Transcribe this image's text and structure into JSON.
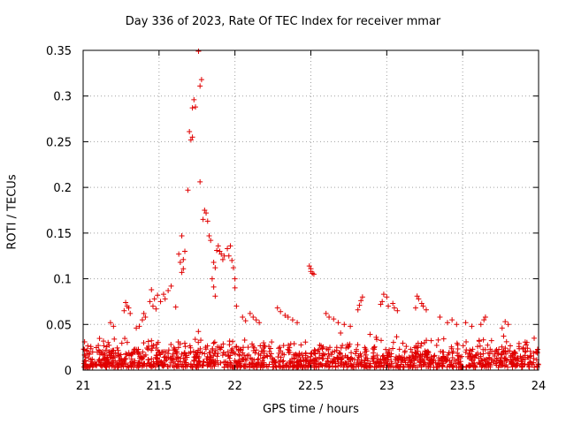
{
  "chart_data": {
    "type": "scatter",
    "title": "Day 336 of 2023, Rate Of TEC Index for receiver mmar",
    "xlabel": "GPS time / hours",
    "ylabel": "ROTI / TECUs",
    "xlim": [
      21,
      24
    ],
    "ylim": [
      0,
      0.35
    ],
    "x_ticks": [
      "21",
      "21.5",
      "22",
      "22.5",
      "23",
      "23.5",
      "24"
    ],
    "y_ticks": [
      "0",
      "0.05",
      "0.1",
      "0.15",
      "0.2",
      "0.25",
      "0.3",
      "0.35"
    ],
    "grid": true,
    "marker": "+",
    "color": "#e00000",
    "series": [
      {
        "name": "ROTI",
        "points": [
          [
            21.76,
            0.349
          ],
          [
            21.78,
            0.318
          ],
          [
            21.77,
            0.311
          ],
          [
            21.73,
            0.296
          ],
          [
            21.74,
            0.288
          ],
          [
            21.72,
            0.287
          ],
          [
            21.7,
            0.261
          ],
          [
            21.72,
            0.255
          ],
          [
            21.71,
            0.252
          ],
          [
            21.77,
            0.206
          ],
          [
            21.69,
            0.197
          ],
          [
            21.8,
            0.175
          ],
          [
            21.81,
            0.172
          ],
          [
            21.79,
            0.165
          ],
          [
            21.82,
            0.163
          ],
          [
            21.83,
            0.147
          ],
          [
            21.84,
            0.142
          ],
          [
            21.65,
            0.147
          ],
          [
            21.67,
            0.13
          ],
          [
            21.63,
            0.127
          ],
          [
            21.66,
            0.121
          ],
          [
            21.64,
            0.118
          ],
          [
            21.66,
            0.111
          ],
          [
            21.65,
            0.107
          ],
          [
            21.89,
            0.136
          ],
          [
            21.88,
            0.131
          ],
          [
            21.9,
            0.13
          ],
          [
            21.91,
            0.127
          ],
          [
            21.93,
            0.125
          ],
          [
            21.92,
            0.121
          ],
          [
            21.95,
            0.133
          ],
          [
            21.97,
            0.136
          ],
          [
            21.96,
            0.125
          ],
          [
            21.98,
            0.12
          ],
          [
            21.99,
            0.112
          ],
          [
            22.0,
            0.1
          ],
          [
            22.0,
            0.09
          ],
          [
            21.86,
            0.118
          ],
          [
            21.87,
            0.112
          ],
          [
            21.85,
            0.1
          ],
          [
            21.86,
            0.091
          ],
          [
            21.87,
            0.081
          ],
          [
            22.01,
            0.07
          ],
          [
            22.49,
            0.114
          ],
          [
            22.5,
            0.111
          ],
          [
            22.5,
            0.108
          ],
          [
            22.51,
            0.106
          ],
          [
            22.52,
            0.105
          ],
          [
            21.58,
            0.092
          ],
          [
            21.56,
            0.087
          ],
          [
            21.53,
            0.083
          ],
          [
            21.49,
            0.082
          ],
          [
            21.47,
            0.078
          ],
          [
            21.51,
            0.075
          ],
          [
            21.54,
            0.078
          ],
          [
            21.45,
            0.088
          ],
          [
            21.44,
            0.075
          ],
          [
            21.46,
            0.07
          ],
          [
            21.48,
            0.067
          ],
          [
            21.61,
            0.069
          ],
          [
            21.28,
            0.074
          ],
          [
            21.29,
            0.07
          ],
          [
            21.3,
            0.068
          ],
          [
            21.27,
            0.065
          ],
          [
            21.31,
            0.062
          ],
          [
            21.4,
            0.062
          ],
          [
            21.41,
            0.058
          ],
          [
            21.39,
            0.055
          ],
          [
            21.37,
            0.048
          ],
          [
            21.35,
            0.046
          ],
          [
            21.18,
            0.052
          ],
          [
            21.2,
            0.048
          ],
          [
            22.98,
            0.083
          ],
          [
            23.0,
            0.08
          ],
          [
            22.97,
            0.075
          ],
          [
            22.96,
            0.072
          ],
          [
            23.01,
            0.07
          ],
          [
            23.04,
            0.073
          ],
          [
            23.05,
            0.068
          ],
          [
            23.07,
            0.065
          ],
          [
            22.84,
            0.08
          ],
          [
            22.83,
            0.076
          ],
          [
            22.82,
            0.071
          ],
          [
            22.81,
            0.066
          ],
          [
            23.2,
            0.081
          ],
          [
            23.21,
            0.078
          ],
          [
            23.23,
            0.073
          ],
          [
            23.24,
            0.07
          ],
          [
            23.19,
            0.068
          ],
          [
            23.26,
            0.066
          ],
          [
            22.28,
            0.068
          ],
          [
            22.3,
            0.064
          ],
          [
            22.33,
            0.06
          ],
          [
            22.35,
            0.058
          ],
          [
            22.38,
            0.055
          ],
          [
            22.41,
            0.052
          ],
          [
            22.1,
            0.062
          ],
          [
            22.12,
            0.058
          ],
          [
            22.14,
            0.055
          ],
          [
            22.16,
            0.052
          ],
          [
            22.05,
            0.058
          ],
          [
            22.07,
            0.054
          ],
          [
            23.35,
            0.058
          ],
          [
            23.4,
            0.052
          ],
          [
            23.43,
            0.055
          ],
          [
            23.46,
            0.05
          ],
          [
            23.52,
            0.052
          ],
          [
            23.56,
            0.048
          ],
          [
            23.65,
            0.058
          ],
          [
            23.64,
            0.055
          ],
          [
            23.62,
            0.05
          ],
          [
            23.78,
            0.053
          ],
          [
            23.8,
            0.05
          ],
          [
            23.76,
            0.046
          ],
          [
            22.6,
            0.062
          ],
          [
            22.62,
            0.058
          ],
          [
            22.65,
            0.056
          ],
          [
            22.68,
            0.052
          ],
          [
            22.72,
            0.05
          ],
          [
            22.76,
            0.048
          ]
        ]
      }
    ]
  }
}
